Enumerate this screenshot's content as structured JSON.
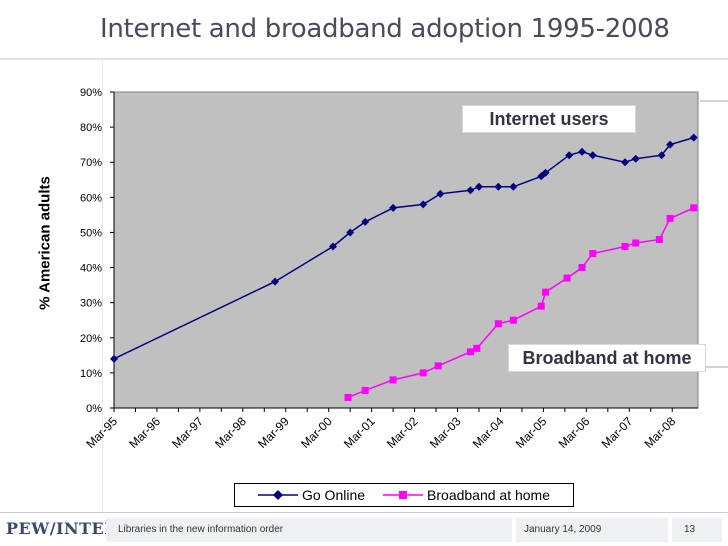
{
  "slide": {
    "title": "Internet and broadband adoption 1995-2008",
    "callout_internet": "Internet users",
    "callout_broadband": "Broadband at home"
  },
  "footer": {
    "logo": "PEW/INTERNET",
    "deck_title": "Libraries in the new information order",
    "date": "January 14, 2009",
    "page": "13"
  },
  "chart_data": {
    "type": "line",
    "title": "Internet and broadband adoption 1995-2008",
    "xlabel": "",
    "ylabel": "% American adults",
    "ylim": [
      0,
      90
    ],
    "y_ticks": [
      "0%",
      "10%",
      "20%",
      "30%",
      "40%",
      "50%",
      "60%",
      "70%",
      "80%",
      "90%"
    ],
    "y_tick_values": [
      0,
      10,
      20,
      30,
      40,
      50,
      60,
      70,
      80,
      90
    ],
    "x_range": [
      1995.0,
      2008.6
    ],
    "x_ticks": [
      "Mar-95",
      "Mar-96",
      "Mar-97",
      "Mar-98",
      "Mar-99",
      "Mar-00",
      "Mar-01",
      "Mar-02",
      "Mar-03",
      "Mar-04",
      "Mar-05",
      "Mar-06",
      "Mar-07",
      "Mar-08"
    ],
    "x_tick_values": [
      1995,
      1996,
      1997,
      1998,
      1999,
      2000,
      2001,
      2002,
      2003,
      2004,
      2005,
      2006,
      2007,
      2008
    ],
    "grid": false,
    "legend_position": "bottom",
    "series": [
      {
        "name": "Go Online",
        "color": "#000080",
        "marker": "diamond",
        "x": [
          1995.0,
          1998.75,
          2000.1,
          2000.5,
          2000.85,
          2001.5,
          2002.2,
          2002.6,
          2003.3,
          2003.5,
          2003.95,
          2004.3,
          2004.95,
          2005.05,
          2005.6,
          2005.9,
          2006.15,
          2006.9,
          2007.15,
          2007.75,
          2007.95,
          2008.5
        ],
        "y": [
          14,
          36,
          46,
          50,
          53,
          57,
          58,
          61,
          62,
          63,
          63,
          63,
          66,
          67,
          72,
          73,
          72,
          70,
          71,
          72,
          75,
          77
        ]
      },
      {
        "name": "Broadband at home",
        "color": "#ff00ff",
        "marker": "square",
        "x": [
          2000.45,
          2000.85,
          2001.5,
          2002.2,
          2002.55,
          2003.3,
          2003.45,
          2003.95,
          2004.3,
          2004.95,
          2005.05,
          2005.55,
          2005.9,
          2006.15,
          2006.9,
          2007.15,
          2007.7,
          2007.95,
          2008.5
        ],
        "y": [
          3,
          5,
          8,
          10,
          12,
          16,
          17,
          24,
          25,
          29,
          33,
          37,
          40,
          44,
          46,
          47,
          48,
          54,
          57
        ]
      }
    ]
  }
}
